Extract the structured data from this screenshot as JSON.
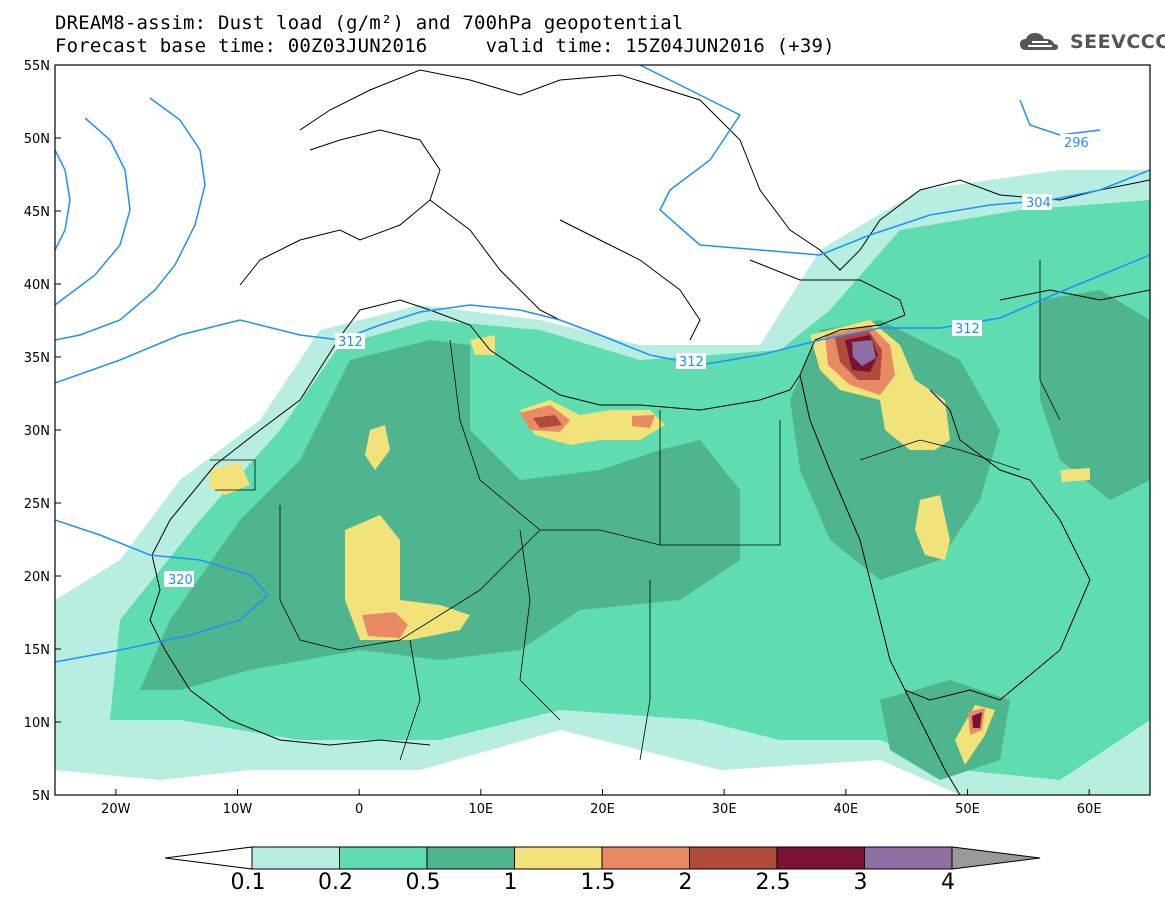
{
  "header": {
    "title_line1": "DREAM8-assim: Dust load (g/m²) and 700hPa geopotential",
    "title_line2": "Forecast base time: 00Z03JUN2016     valid time: 15Z04JUN2016 (+39)",
    "logo_text": "SEEVCCC"
  },
  "map": {
    "lon_labels": [
      "20W",
      "10W",
      "0",
      "10E",
      "20E",
      "30E",
      "40E",
      "50E",
      "60E"
    ],
    "lat_labels": [
      "55N",
      "50N",
      "45N",
      "40N",
      "35N",
      "30N",
      "25N",
      "20N",
      "15N",
      "10N",
      "5N"
    ],
    "lon_range": [
      -25,
      65
    ],
    "lat_range": [
      5,
      55
    ],
    "contour_labels": [
      "296",
      "304",
      "312",
      "320"
    ],
    "contour_color": "#1e90ff"
  },
  "colorbar": {
    "labels": [
      "0.1",
      "0.2",
      "0.5",
      "1",
      "1.5",
      "2",
      "2.5",
      "3",
      "4"
    ],
    "colors": [
      "#b8eee2",
      "#5fdcb0",
      "#4fb58e",
      "#f2e27a",
      "#e88a64",
      "#b04a3a",
      "#7a1233",
      "#8f6ea4",
      "#9a9a9a"
    ]
  }
}
